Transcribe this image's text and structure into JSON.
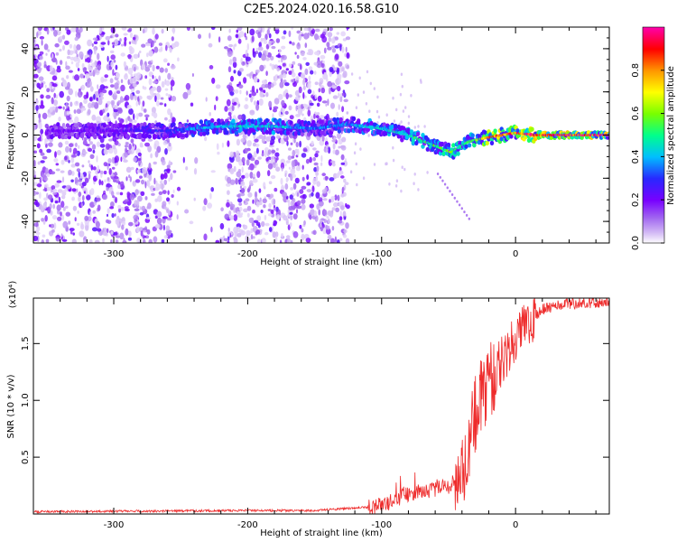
{
  "title": "C2E5.2024.020.16.58.G10",
  "colors": {
    "snr_line": "#ee2b2b",
    "colormap": [
      "#ffffff",
      "#d9c3f5",
      "#a36cf0",
      "#7a00ff",
      "#2030ff",
      "#00c8ff",
      "#00ff80",
      "#80ff00",
      "#ffff00",
      "#ff9000",
      "#ff0000",
      "#ff00a0"
    ]
  },
  "chart_data": [
    {
      "type": "heatmap",
      "name": "spectrogram",
      "xlabel": "Height of straight line (km)",
      "ylabel": "Frequency (Hz)",
      "xlim": [
        -360,
        70
      ],
      "ylim": [
        -50,
        50
      ],
      "x_ticks": [
        -300,
        -200,
        -100,
        0
      ],
      "y_ticks": [
        -40,
        -20,
        0,
        20,
        40
      ],
      "colorbar": {
        "label": "Normalized spectral amplitude",
        "range": [
          0,
          1
        ],
        "ticks": [
          "0.0",
          "0.2",
          "0.4",
          "0.6",
          "0.8"
        ]
      },
      "ridge": {
        "description_points_height_km": [
          -345,
          -300,
          -260,
          -220,
          -180,
          -150,
          -125,
          -100,
          -80,
          -60,
          -48,
          -35,
          -20,
          0,
          15,
          70
        ],
        "frequency_hz": [
          2,
          2,
          2,
          4,
          4,
          3,
          5,
          3,
          0,
          -5,
          -8,
          -3,
          -1,
          1,
          0,
          0
        ],
        "amplitude": [
          0.2,
          0.22,
          0.3,
          0.45,
          0.45,
          0.35,
          0.4,
          0.45,
          0.5,
          0.55,
          0.6,
          0.5,
          0.85,
          0.9,
          0.95,
          0.95
        ]
      }
    },
    {
      "type": "line",
      "name": "snr",
      "xlabel": "Height of straight line (km)",
      "ylabel": "SNR (10 * v/v)",
      "y_multiplier": "(x10⁴)",
      "xlim": [
        -360,
        70
      ],
      "ylim": [
        0,
        1.9
      ],
      "x_ticks": [
        -300,
        -200,
        -100,
        0
      ],
      "y_ticks": [
        "0.5",
        "1.0",
        "1.5"
      ],
      "y_tick_values": [
        0.5,
        1.0,
        1.5
      ],
      "profile": {
        "x": [
          -360,
          -200,
          -150,
          -110,
          -100,
          -90,
          -80,
          -70,
          -60,
          -50,
          -40,
          -35,
          -30,
          -25,
          -20,
          -15,
          -10,
          -5,
          0,
          10,
          20,
          40,
          70
        ],
        "y": [
          0.02,
          0.03,
          0.03,
          0.06,
          0.08,
          0.12,
          0.18,
          0.2,
          0.22,
          0.24,
          0.35,
          0.6,
          0.9,
          1.05,
          1.15,
          1.25,
          1.35,
          1.45,
          1.55,
          1.7,
          1.8,
          1.85,
          1.87
        ]
      }
    }
  ]
}
